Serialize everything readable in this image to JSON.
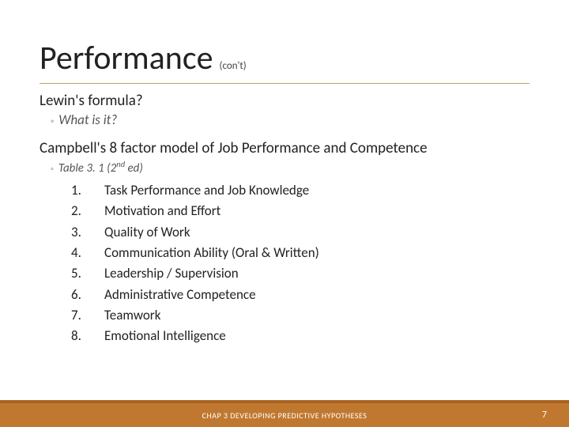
{
  "title": "Performance",
  "title_suffix": "(con't)",
  "divider_color": "#c0a070",
  "section1": {
    "heading": "Lewin's formula?",
    "sub_bullet_glyph": "◦",
    "sub_text": "What is it?"
  },
  "section2": {
    "heading": "Campbell's 8 factor model of Job Performance and Competence",
    "sub_bullet_glyph": "◦",
    "sub_prefix": "Table 3. 1 (2",
    "sub_sup": "nd",
    "sub_suffix": " ed)",
    "items": [
      {
        "n": "1.",
        "text": "Task Performance and Job Knowledge"
      },
      {
        "n": "2.",
        "text": "Motivation and Effort"
      },
      {
        "n": "3.",
        "text": "Quality of Work"
      },
      {
        "n": "4.",
        "text": "Communication Ability (Oral & Written)"
      },
      {
        "n": "5.",
        "text": "Leadership / Supervision"
      },
      {
        "n": "6.",
        "text": "Administrative Competence"
      },
      {
        "n": "7.",
        "text": "Teamwork"
      },
      {
        "n": "8.",
        "text": "Emotional Intelligence"
      }
    ]
  },
  "footer": {
    "text": "CHAP 3 DEVELOPING PREDICTIVE HYPOTHESES",
    "page": "7",
    "bg_color": "#c07830",
    "border_color": "#a8621f",
    "text_color": "#ffffff"
  },
  "typography": {
    "title_fontsize": 42,
    "section_head_fontsize": 19,
    "sub_fontsize": 17,
    "list_fontsize": 17,
    "footer_fontsize": 10
  },
  "background_color": "#ffffff"
}
